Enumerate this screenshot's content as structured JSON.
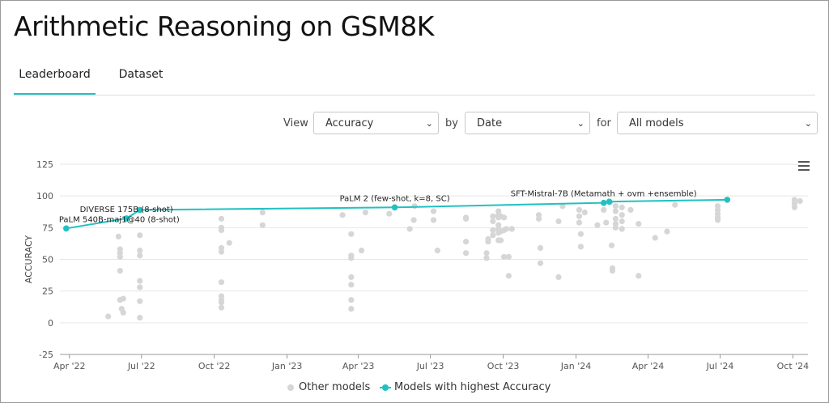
{
  "page": {
    "title": "Arithmetic Reasoning on GSM8K",
    "tabs": [
      {
        "label": "Leaderboard",
        "active": true
      },
      {
        "label": "Dataset",
        "active": false
      }
    ]
  },
  "controls": {
    "view_label": "View",
    "view_value": "Accuracy",
    "by_label": "by",
    "by_value": "Date",
    "for_label": "for",
    "for_value": "All models"
  },
  "colors": {
    "accent": "#21c1c1",
    "other": "#d6d6d6",
    "grid": "#e6e6e6"
  },
  "chart_data": {
    "type": "scatter",
    "ylabel": "ACCURACY",
    "ylim": [
      -25,
      125
    ],
    "yticks": [
      -25,
      0,
      25,
      50,
      75,
      100,
      125
    ],
    "xlim": [
      "2022-03-20",
      "2024-10-20"
    ],
    "xticks": [
      {
        "date": "2022-04-01",
        "label": "Apr '22"
      },
      {
        "date": "2022-07-01",
        "label": "Jul '22"
      },
      {
        "date": "2022-10-01",
        "label": "Oct '22"
      },
      {
        "date": "2023-01-01",
        "label": "Jan '23"
      },
      {
        "date": "2023-04-01",
        "label": "Apr '23"
      },
      {
        "date": "2023-07-01",
        "label": "Jul '23"
      },
      {
        "date": "2023-10-01",
        "label": "Oct '23"
      },
      {
        "date": "2024-01-01",
        "label": "Jan '24"
      },
      {
        "date": "2024-04-01",
        "label": "Apr '24"
      },
      {
        "date": "2024-07-01",
        "label": "Jul '24"
      },
      {
        "date": "2024-10-01",
        "label": "Oct '24"
      }
    ],
    "grid": true,
    "legend": "bottom",
    "series": [
      {
        "name": "Other models",
        "points": [
          [
            "2022-05-20",
            5
          ],
          [
            "2022-06-02",
            68
          ],
          [
            "2022-06-04",
            58
          ],
          [
            "2022-06-04",
            55
          ],
          [
            "2022-06-04",
            52
          ],
          [
            "2022-06-04",
            41
          ],
          [
            "2022-06-04",
            18
          ],
          [
            "2022-06-06",
            11
          ],
          [
            "2022-06-08",
            8
          ],
          [
            "2022-06-08",
            19
          ],
          [
            "2022-06-29",
            69
          ],
          [
            "2022-06-29",
            57
          ],
          [
            "2022-06-29",
            53
          ],
          [
            "2022-06-29",
            33
          ],
          [
            "2022-06-29",
            28
          ],
          [
            "2022-06-29",
            17
          ],
          [
            "2022-06-29",
            4
          ],
          [
            "2022-10-10",
            82
          ],
          [
            "2022-10-10",
            75
          ],
          [
            "2022-10-10",
            73
          ],
          [
            "2022-10-10",
            59
          ],
          [
            "2022-10-10",
            56
          ],
          [
            "2022-10-10",
            32
          ],
          [
            "2022-10-10",
            21
          ],
          [
            "2022-10-10",
            18
          ],
          [
            "2022-10-10",
            16
          ],
          [
            "2022-10-10",
            12
          ],
          [
            "2022-10-20",
            63
          ],
          [
            "2022-12-01",
            87
          ],
          [
            "2022-12-01",
            77
          ],
          [
            "2023-03-12",
            85
          ],
          [
            "2023-03-23",
            70
          ],
          [
            "2023-03-23",
            53
          ],
          [
            "2023-03-23",
            51
          ],
          [
            "2023-03-23",
            36
          ],
          [
            "2023-03-23",
            30
          ],
          [
            "2023-03-23",
            18
          ],
          [
            "2023-03-23",
            11
          ],
          [
            "2023-04-05",
            57
          ],
          [
            "2023-04-10",
            87
          ],
          [
            "2023-05-10",
            86
          ],
          [
            "2023-06-05",
            74
          ],
          [
            "2023-06-10",
            81
          ],
          [
            "2023-06-11",
            92
          ],
          [
            "2023-07-05",
            81
          ],
          [
            "2023-07-05",
            88
          ],
          [
            "2023-07-10",
            57
          ],
          [
            "2023-08-15",
            83
          ],
          [
            "2023-08-15",
            82
          ],
          [
            "2023-08-15",
            64
          ],
          [
            "2023-08-15",
            55
          ],
          [
            "2023-09-10",
            55
          ],
          [
            "2023-09-10",
            51
          ],
          [
            "2023-09-12",
            64
          ],
          [
            "2023-09-12",
            66
          ],
          [
            "2023-09-18",
            84
          ],
          [
            "2023-09-18",
            80
          ],
          [
            "2023-09-18",
            73
          ],
          [
            "2023-09-18",
            69
          ],
          [
            "2023-09-25",
            88
          ],
          [
            "2023-09-25",
            85
          ],
          [
            "2023-09-25",
            83
          ],
          [
            "2023-09-25",
            77
          ],
          [
            "2023-09-25",
            74
          ],
          [
            "2023-09-25",
            71
          ],
          [
            "2023-09-25",
            65
          ],
          [
            "2023-09-28",
            84
          ],
          [
            "2023-09-28",
            72
          ],
          [
            "2023-09-28",
            65
          ],
          [
            "2023-10-02",
            83
          ],
          [
            "2023-10-02",
            73
          ],
          [
            "2023-10-02",
            52
          ],
          [
            "2023-10-05",
            74
          ],
          [
            "2023-10-08",
            52
          ],
          [
            "2023-10-08",
            37
          ],
          [
            "2023-10-12",
            74
          ],
          [
            "2023-11-15",
            85
          ],
          [
            "2023-11-15",
            82
          ],
          [
            "2023-11-17",
            59
          ],
          [
            "2023-11-17",
            47
          ],
          [
            "2023-12-10",
            80
          ],
          [
            "2023-12-10",
            36
          ],
          [
            "2023-12-15",
            92
          ],
          [
            "2024-01-05",
            89
          ],
          [
            "2024-01-05",
            84
          ],
          [
            "2024-01-05",
            79
          ],
          [
            "2024-01-07",
            70
          ],
          [
            "2024-01-07",
            60
          ],
          [
            "2024-01-12",
            87
          ],
          [
            "2024-01-28",
            77
          ],
          [
            "2024-02-05",
            89
          ],
          [
            "2024-02-08",
            79
          ],
          [
            "2024-02-13",
            95
          ],
          [
            "2024-02-15",
            61
          ],
          [
            "2024-02-16",
            43
          ],
          [
            "2024-02-16",
            41
          ],
          [
            "2024-02-20",
            92
          ],
          [
            "2024-02-20",
            88
          ],
          [
            "2024-02-20",
            82
          ],
          [
            "2024-02-20",
            78
          ],
          [
            "2024-02-20",
            75
          ],
          [
            "2024-02-28",
            91
          ],
          [
            "2024-02-28",
            85
          ],
          [
            "2024-02-28",
            80
          ],
          [
            "2024-02-28",
            74
          ],
          [
            "2024-03-10",
            89
          ],
          [
            "2024-03-20",
            78
          ],
          [
            "2024-03-20",
            37
          ],
          [
            "2024-04-10",
            67
          ],
          [
            "2024-04-25",
            72
          ],
          [
            "2024-05-05",
            93
          ],
          [
            "2024-06-28",
            92
          ],
          [
            "2024-06-28",
            89
          ],
          [
            "2024-06-28",
            86
          ],
          [
            "2024-06-28",
            83
          ],
          [
            "2024-06-28",
            81
          ],
          [
            "2024-10-03",
            97
          ],
          [
            "2024-10-03",
            94
          ],
          [
            "2024-10-03",
            91
          ],
          [
            "2024-10-10",
            96
          ]
        ]
      },
      {
        "name": "Models with highest Accuracy",
        "points": [
          [
            "2022-03-28",
            74.4
          ],
          [
            "2022-06-12",
            82.3
          ],
          [
            "2022-06-29",
            89
          ],
          [
            "2023-05-17",
            91
          ],
          [
            "2024-02-05",
            94.6
          ],
          [
            "2024-02-12",
            95.5
          ],
          [
            "2024-07-10",
            97
          ]
        ]
      }
    ],
    "annotations": [
      {
        "text": "PaLM 540B-maj1@40 (8-shot)",
        "date": "2022-03-28",
        "value": 74.4,
        "anchor": "start"
      },
      {
        "text": "DIVERSE 175B (8-shot)",
        "date": "2022-06-12",
        "value": 82.3,
        "anchor": "middle"
      },
      {
        "text": "PaLM 2 (few-shot, k=8, SC)",
        "date": "2023-05-17",
        "value": 91,
        "anchor": "middle"
      },
      {
        "text": "SFT-Mistral-7B (Metamath + ovm +ensemble)",
        "date": "2024-02-05",
        "value": 94.6,
        "anchor": "middle"
      }
    ]
  }
}
